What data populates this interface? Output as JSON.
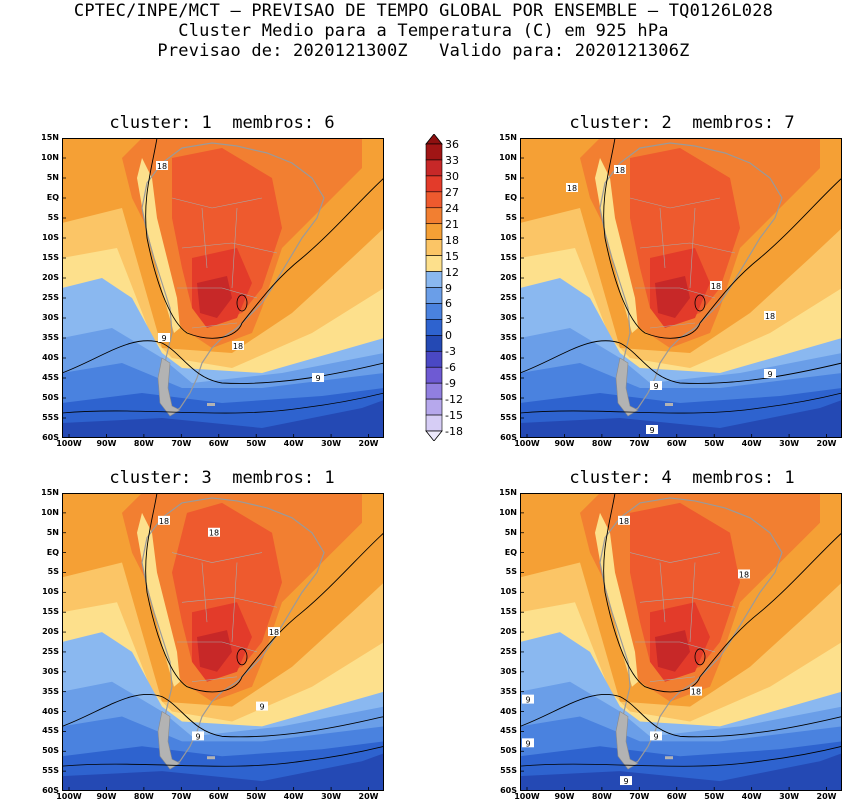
{
  "header": {
    "line1": "CPTEC/INPE/MCT — PREVISAO DE TEMPO GLOBAL POR ENSEMBLE — TQ0126L028",
    "line2": "Cluster Medio para a Temperatura (C) em 925 hPa",
    "line3": "Previsao de: 2020121300Z   Valido para: 2020121306Z"
  },
  "panels": [
    {
      "title": "cluster: 1  membros: 6",
      "contour_labels": [
        "18",
        "9",
        "18",
        "9"
      ]
    },
    {
      "title": "cluster: 2  membros: 7",
      "contour_labels": [
        "18",
        "18",
        "18",
        "18",
        "9",
        "9",
        "9"
      ]
    },
    {
      "title": "cluster: 3  membros: 1",
      "contour_labels": [
        "18",
        "18",
        "18",
        "9",
        "9"
      ]
    },
    {
      "title": "cluster: 4  membros: 1",
      "contour_labels": [
        "18",
        "18",
        "18",
        "9",
        "9",
        "9",
        "9"
      ]
    }
  ],
  "lat_ticks": [
    "15N",
    "10N",
    "5N",
    "EQ",
    "5S",
    "10S",
    "15S",
    "20S",
    "25S",
    "30S",
    "35S",
    "40S",
    "45S",
    "50S",
    "55S",
    "60S"
  ],
  "lon_ticks": [
    "100W",
    "90W",
    "80W",
    "70W",
    "60W",
    "50W",
    "40W",
    "30W",
    "20W"
  ],
  "colorbar": {
    "levels": [
      "36",
      "33",
      "30",
      "27",
      "24",
      "21",
      "18",
      "15",
      "12",
      "9",
      "6",
      "3",
      "0",
      "-3",
      "-6",
      "-9",
      "-12",
      "-15",
      "-18"
    ],
    "colors": [
      "#a01515",
      "#c72828",
      "#e33b2a",
      "#ee5a2e",
      "#f27f31",
      "#f5a035",
      "#fbc566",
      "#fde08c",
      "#8ab8f0",
      "#6a9ee8",
      "#4a82df",
      "#2e63cf",
      "#2449b4",
      "#4a48c4",
      "#6e5ad3",
      "#917fe0",
      "#b6a8ec",
      "#d6cdf5"
    ]
  },
  "colors": {
    "very_hot": "#c72828",
    "hot": "#e33b2a",
    "warm": "#ee5a2e",
    "mild_warm": "#f27f31",
    "orange": "#f5a035",
    "light_orange": "#fbc566",
    "pale": "#fde08c",
    "light_blue": "#8ab8f0",
    "mid_blue": "#6a9ee8",
    "blue": "#4a82df",
    "dark_blue": "#2e63cf",
    "deep_blue": "#2449b4"
  }
}
